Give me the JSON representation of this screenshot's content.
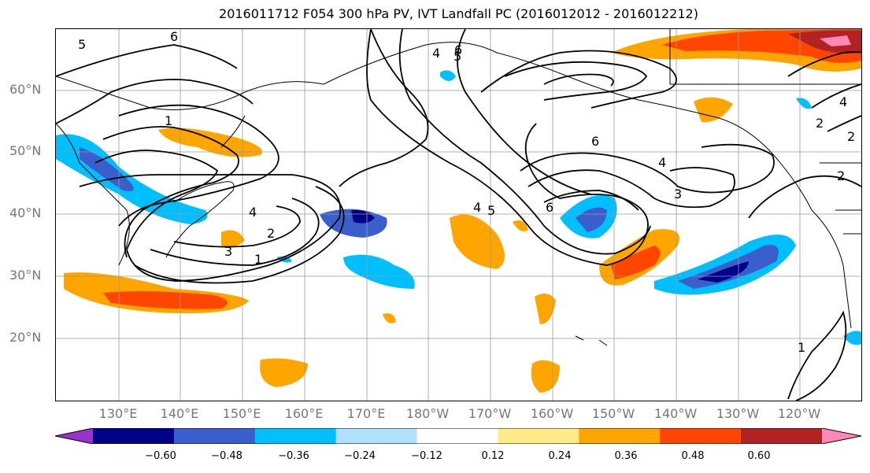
{
  "title": "2016011712 F054 300 hPa PV, IVT Landfall PC (2016012012 - 2016012212)",
  "map": {
    "lat_labels": [
      "60°N",
      "50°N",
      "40°N",
      "30°N",
      "20°N"
    ],
    "lon_labels": [
      "130°E",
      "140°E",
      "150°E",
      "160°E",
      "170°E",
      "180°W",
      "170°W",
      "160°W",
      "150°W",
      "140°W",
      "130°W",
      "120°W"
    ],
    "contour_labels": [
      "5",
      "6",
      "1",
      "4",
      "6",
      "5",
      "4",
      "2",
      "3",
      "1",
      "5",
      "4",
      "6",
      "6",
      "4",
      "3",
      "2",
      "4",
      "2",
      "2",
      "1"
    ],
    "grid": true,
    "coastlines": true,
    "colors": {
      "purple": "#9932CC",
      "navy": "#00008B",
      "royal_blue": "#3A5FCD",
      "deep_sky": "#00BFFF",
      "light_blue": "#B2E0FF",
      "white": "#FFFFFF",
      "light_yellow": "#FFEB88",
      "orange": "#FFA500",
      "orange_red": "#FF4500",
      "firebrick": "#B22222",
      "pink": "#FF88B8"
    }
  },
  "colorbar": {
    "tick_labels": [
      "−0.60",
      "−0.48",
      "−0.36",
      "−0.24",
      "−0.12",
      "0.12",
      "0.24",
      "0.36",
      "0.48",
      "0.60"
    ],
    "bins": [
      "#9932CC",
      "#00008B",
      "#3A5FCD",
      "#00BFFF",
      "#B2E0FF",
      "#FFFFFF",
      "#FFEB88",
      "#FFA500",
      "#FF4500",
      "#B22222",
      "#FF88B8"
    ]
  }
}
